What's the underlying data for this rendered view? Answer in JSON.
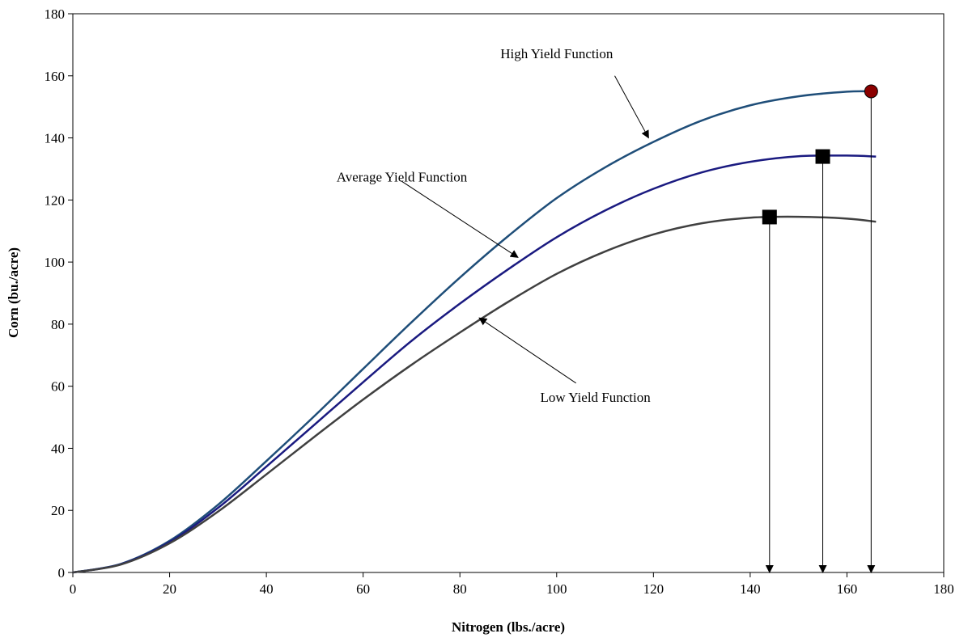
{
  "chart_data": {
    "type": "line",
    "title": "",
    "xlabel": "Nitrogen (lbs./acre)",
    "ylabel": "Corn (bu./acre)",
    "xlim": [
      0,
      180
    ],
    "ylim": [
      0,
      180
    ],
    "xticks": [
      0,
      20,
      40,
      60,
      80,
      100,
      120,
      140,
      160,
      180
    ],
    "yticks": [
      0,
      20,
      40,
      60,
      80,
      100,
      120,
      140,
      160,
      180
    ],
    "grid": false,
    "legend": "none",
    "series": [
      {
        "color": "#1f4e79",
        "x": [
          0,
          10,
          20,
          30,
          40,
          50,
          60,
          70,
          80,
          90,
          100,
          110,
          120,
          130,
          140,
          150,
          160,
          165
        ],
        "y": [
          0,
          2.8,
          10.2,
          21.8,
          35.9,
          50.5,
          65.6,
          80.6,
          95.0,
          108.4,
          120.6,
          130.5,
          138.7,
          145.6,
          150.5,
          153.4,
          154.9,
          155
        ]
      },
      {
        "color": "#1a1a80",
        "x": [
          0,
          10,
          20,
          30,
          40,
          50,
          60,
          70,
          80,
          90,
          100,
          110,
          120,
          130,
          140,
          150,
          160,
          166
        ],
        "y": [
          0,
          2.7,
          9.8,
          20.8,
          34.1,
          47.7,
          61.3,
          74.6,
          86.6,
          97.7,
          108.0,
          116.6,
          123.6,
          128.9,
          132.3,
          134.1,
          134.3,
          134
        ]
      },
      {
        "color": "#404040",
        "x": [
          0,
          10,
          20,
          30,
          40,
          50,
          60,
          70,
          80,
          90,
          100,
          110,
          120,
          130,
          140,
          150,
          160,
          166
        ],
        "y": [
          0,
          2.6,
          9.4,
          19.6,
          31.6,
          43.8,
          55.7,
          66.9,
          77.3,
          87.2,
          96.2,
          103.4,
          108.9,
          112.5,
          114.3,
          114.6,
          114.0,
          113
        ]
      }
    ],
    "points": [
      {
        "x": 165,
        "y": 155,
        "marker": "circle",
        "color": "#8b0000"
      },
      {
        "x": 155,
        "y": 134,
        "marker": "square",
        "color": "#000000"
      },
      {
        "x": 144,
        "y": 114.5,
        "marker": "square",
        "color": "#000000"
      }
    ],
    "drop_lines": [
      {
        "x": 165,
        "y_from": 155
      },
      {
        "x": 155,
        "y_from": 134
      },
      {
        "x": 144,
        "y_from": 114.5
      }
    ],
    "annotations": [
      {
        "text": "High Yield Function",
        "text_x": 100,
        "text_y": 165.7,
        "arrow_from": [
          112,
          160
        ],
        "arrow_to": [
          119,
          140
        ]
      },
      {
        "text": "Average Yield Function",
        "text_x": 68,
        "text_y": 126,
        "arrow_from": [
          68,
          126
        ],
        "arrow_to": [
          92,
          101.5
        ]
      },
      {
        "text": "Low Yield Function",
        "text_x": 108,
        "text_y": 55,
        "arrow_from": [
          104,
          61
        ],
        "arrow_to": [
          84,
          82
        ]
      }
    ]
  }
}
